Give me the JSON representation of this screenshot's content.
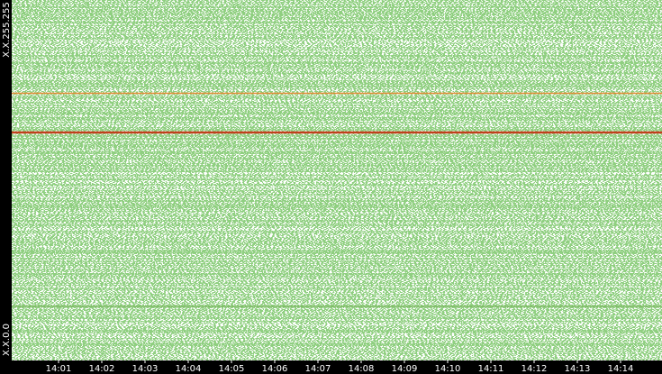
{
  "chart_data": {
    "type": "ip-time-scatter",
    "y_axis_labels": {
      "top": "X.X.255.255",
      "bottom": "X.X.0.0"
    },
    "xticks": [
      "14:01",
      "14:02",
      "14:03",
      "14:04",
      "14:05",
      "14:06",
      "14:07",
      "14:08",
      "14:09",
      "14:10",
      "14:11",
      "14:12",
      "14:13",
      "14:14"
    ],
    "color": "#8fcf80"
  }
}
